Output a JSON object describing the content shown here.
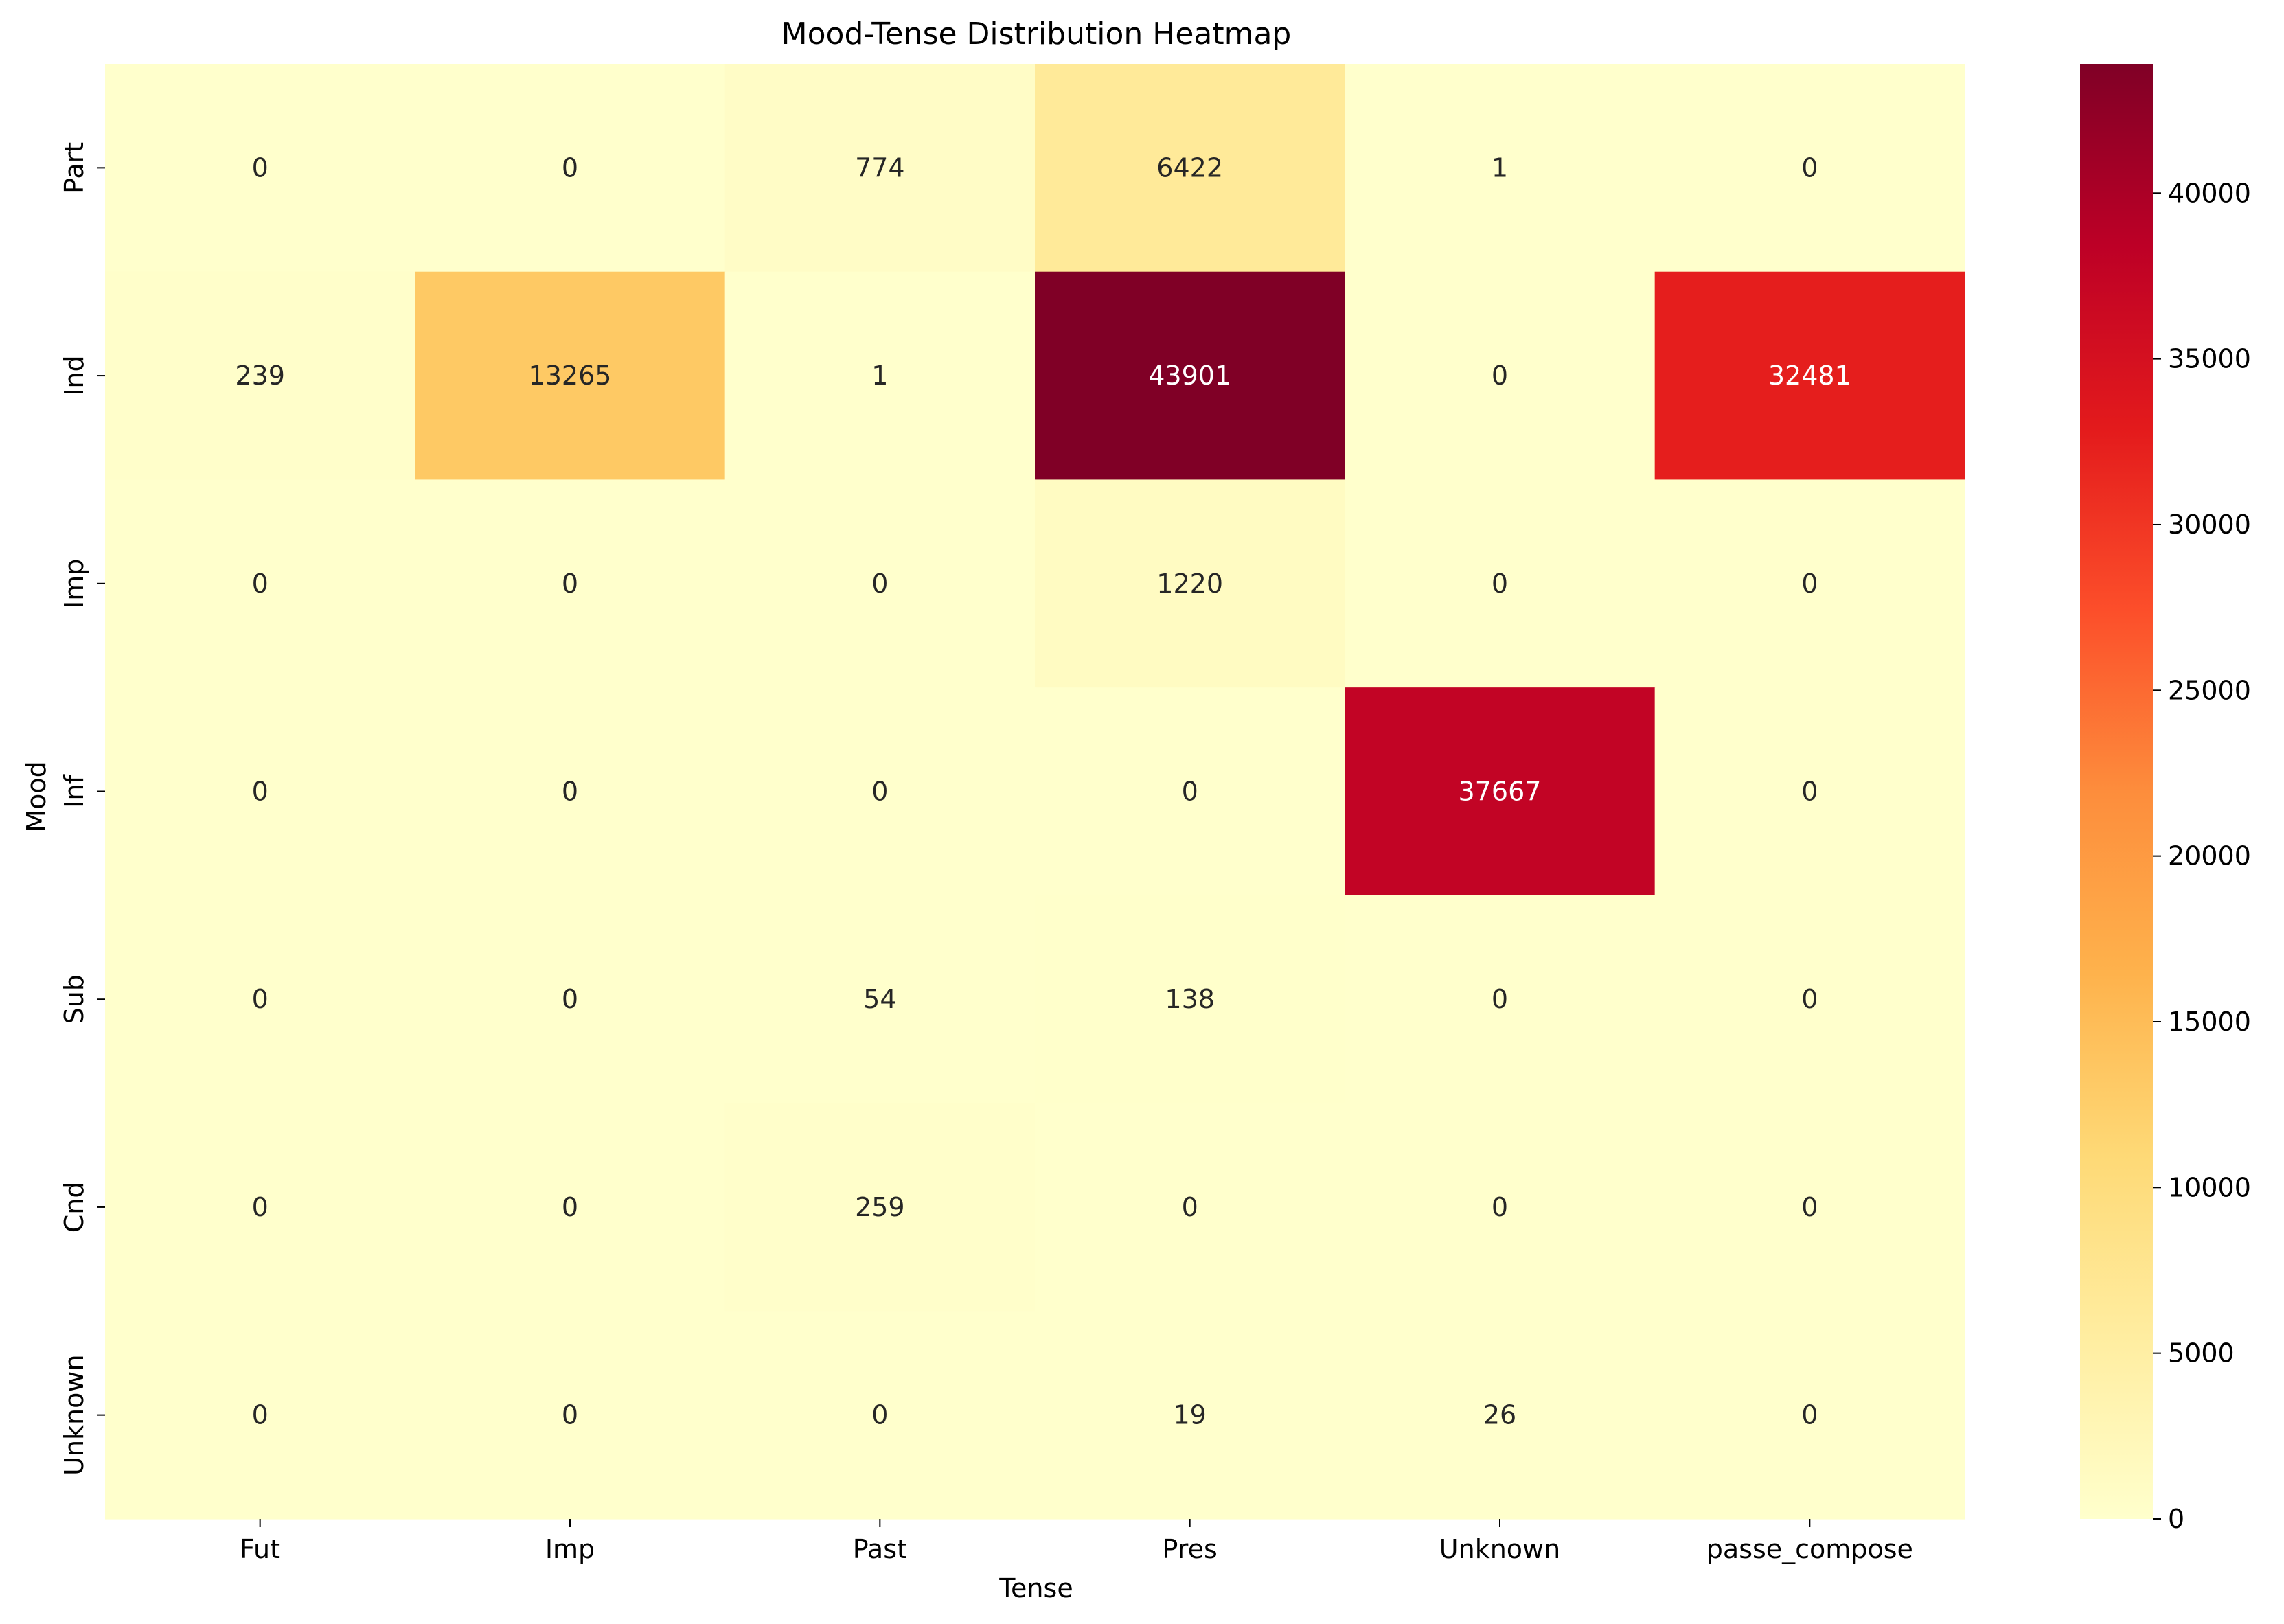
{
  "chart_data": {
    "type": "heatmap",
    "title": "Mood-Tense Distribution Heatmap",
    "xlabel": "Tense",
    "ylabel": "Mood",
    "x_categories": [
      "Fut",
      "Imp",
      "Past",
      "Pres",
      "Unknown",
      "passe_compose"
    ],
    "y_categories": [
      "Part",
      "Ind",
      "Imp",
      "Inf",
      "Sub",
      "Cnd",
      "Unknown"
    ],
    "values": [
      [
        0,
        0,
        774,
        6422,
        1,
        0
      ],
      [
        239,
        13265,
        1,
        43901,
        0,
        32481
      ],
      [
        0,
        0,
        0,
        1220,
        0,
        0
      ],
      [
        0,
        0,
        0,
        0,
        37667,
        0
      ],
      [
        0,
        0,
        54,
        138,
        0,
        0
      ],
      [
        0,
        0,
        259,
        0,
        0,
        0
      ],
      [
        0,
        0,
        0,
        19,
        26,
        0
      ]
    ],
    "colormap": "YlOrRd",
    "color_range": [
      0,
      43901
    ],
    "colorbar_ticks": [
      0,
      5000,
      10000,
      15000,
      20000,
      25000,
      30000,
      35000,
      40000
    ],
    "grid": false,
    "colorbar": "right"
  }
}
